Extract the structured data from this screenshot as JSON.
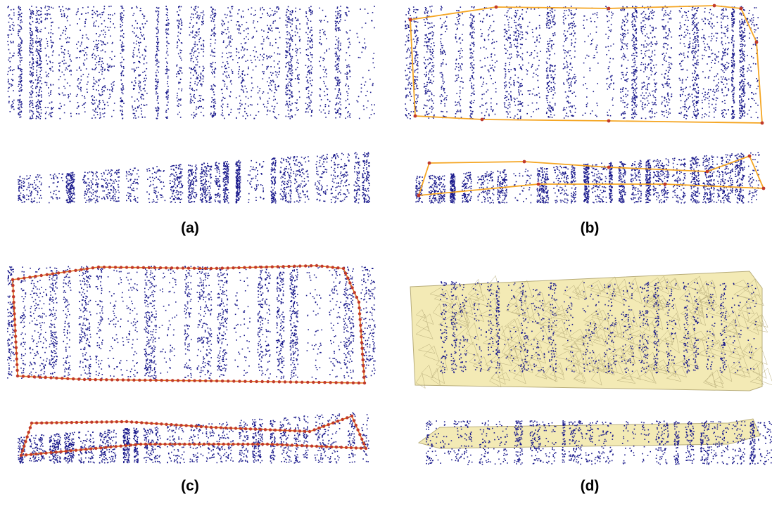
{
  "figure": {
    "panels": [
      {
        "id": "a",
        "caption": "(a)",
        "boundary": "none",
        "surface": false
      },
      {
        "id": "b",
        "caption": "(b)",
        "boundary": "coarse",
        "surface": false
      },
      {
        "id": "c",
        "caption": "(c)",
        "boundary": "dense",
        "surface": false
      },
      {
        "id": "d",
        "caption": "(d)",
        "boundary": "none",
        "surface": true
      }
    ],
    "colors": {
      "points": "#1a1a8c",
      "boundary_line": "#f5a623",
      "boundary_vertex": "#c0392b",
      "dense_boundary": "#e8761e",
      "mesh_fill": "#f3eab5",
      "mesh_edge": "#b8ad7a"
    }
  }
}
